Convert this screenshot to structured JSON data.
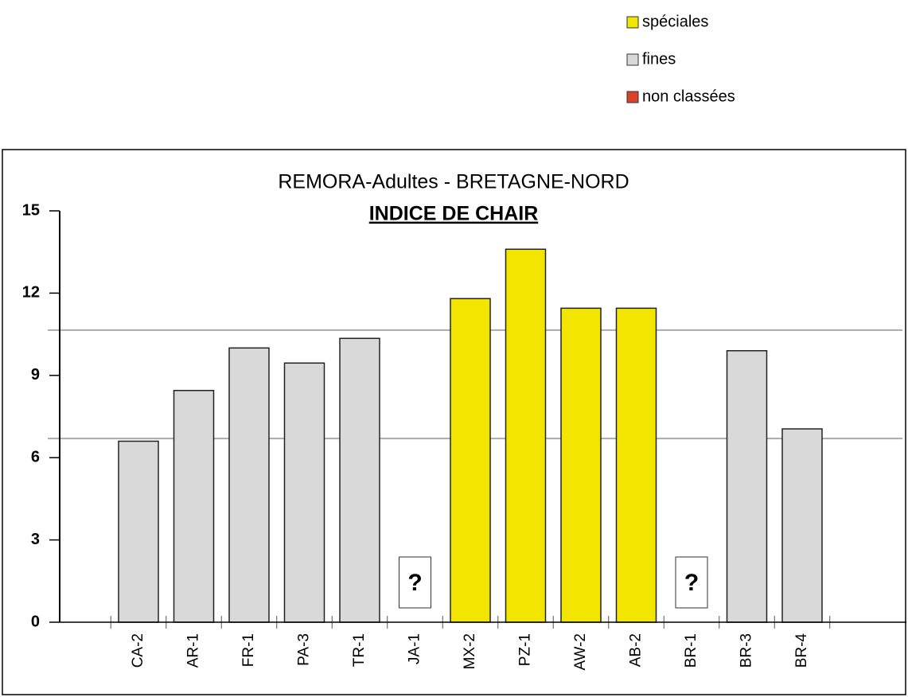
{
  "chart_data": {
    "type": "bar",
    "title": "REMORA-Adultes - BRETAGNE-NORD",
    "subtitle": "INDICE DE CHAIR",
    "categories": [
      "CA-2",
      "AR-1",
      "FR-1",
      "PA-3",
      "TR-1",
      "JA-1",
      "MX-2",
      "PZ-1",
      "AW-2",
      "AB-2",
      "BR-1",
      "BR-3",
      "BR-4"
    ],
    "series": [
      {
        "name": "spéciales",
        "color": "#f2e600",
        "values": [
          null,
          null,
          null,
          null,
          null,
          null,
          11.8,
          13.6,
          11.45,
          11.45,
          null,
          null,
          null
        ]
      },
      {
        "name": "fines",
        "color": "#d9d9d9",
        "values": [
          6.6,
          8.45,
          10.0,
          9.45,
          10.35,
          null,
          null,
          null,
          null,
          null,
          null,
          9.9,
          7.05
        ]
      },
      {
        "name": "non classées",
        "color": "#d9412b",
        "values": [
          null,
          null,
          null,
          null,
          null,
          null,
          null,
          null,
          null,
          null,
          null,
          null,
          null
        ]
      }
    ],
    "ylim": [
      0,
      15
    ],
    "yticks": [
      0,
      3,
      6,
      9,
      12,
      15
    ],
    "reference_lines": [
      10.65,
      6.7
    ],
    "annotations": [
      {
        "text": "?",
        "category": "JA-1"
      },
      {
        "text": "?",
        "category": "BR-1"
      }
    ],
    "legend": "top-right"
  }
}
